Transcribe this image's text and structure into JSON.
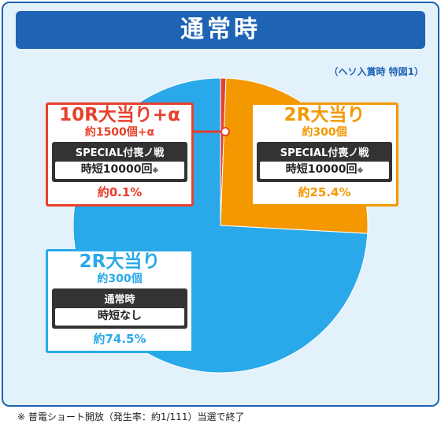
{
  "header": {
    "title": "通常時",
    "source_note": "（ヘソ入賞時 特図1）"
  },
  "colors": {
    "frame": "#1f63b4",
    "panel_bg": "#e3f1fb",
    "red": "#e8402c",
    "orange": "#f39800",
    "blue": "#29a9e9"
  },
  "chart_data": {
    "type": "pie",
    "slices": [
      {
        "label": "10R大当り+α",
        "value": 0.1,
        "color": "#e8402c"
      },
      {
        "label": "2R大当り",
        "value": 25.4,
        "color": "#f39800"
      },
      {
        "label": "2R大当り",
        "value": 74.5,
        "color": "#29a9e9"
      }
    ]
  },
  "labels": [
    {
      "round": "10R大当り+α",
      "amount": "約1500個+α",
      "mode": "SPECIAL付喪ノ戦",
      "mode_detail": "時短10000回",
      "mode_note": "※",
      "percent": "約0.1%"
    },
    {
      "round": "2R大当り",
      "amount": "約300個",
      "mode": "SPECIAL付喪ノ戦",
      "mode_detail": "時短10000回",
      "mode_note": "※",
      "percent": "約25.4%"
    },
    {
      "round": "2R大当り",
      "amount": "約300個",
      "mode": "通常時",
      "mode_detail": "時短なし",
      "mode_note": "",
      "percent": "約74.5%"
    }
  ],
  "footer": {
    "note": "※ 普電ショート開放（発生率：約1/111）当選で終了"
  }
}
